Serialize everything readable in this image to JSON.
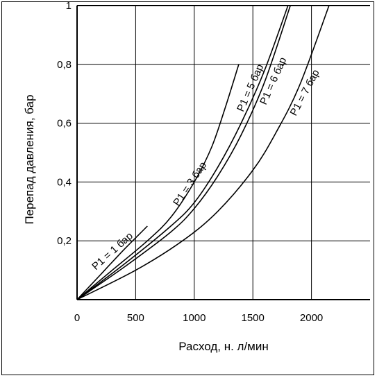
{
  "chart_data": {
    "type": "line",
    "xlabel": "Расход, н. л/мин",
    "ylabel": "Перепад давления, бар",
    "xlim": [
      0,
      2500
    ],
    "ylim": [
      0,
      1
    ],
    "grid": true,
    "x_ticks": [
      0,
      500,
      1000,
      1500,
      2000
    ],
    "x_tick_labels": [
      "0",
      "500",
      "1000",
      "1500",
      "2000"
    ],
    "y_ticks": [
      0.2,
      0.4,
      0.6,
      0.8,
      1
    ],
    "y_tick_labels": [
      "0,2",
      "0,4",
      "0,6",
      "0,8",
      "1"
    ],
    "series": [
      {
        "name": "P1 = 1 бар",
        "x": [
          0,
          200,
          400,
          600
        ],
        "y": [
          0,
          0.085,
          0.17,
          0.25
        ]
      },
      {
        "name": "P1 = 3 бар",
        "x": [
          0,
          300,
          600,
          800,
          1000,
          1150,
          1270,
          1380
        ],
        "y": [
          0,
          0.1,
          0.2,
          0.28,
          0.4,
          0.52,
          0.66,
          0.8
        ]
      },
      {
        "name": "P1 = 5 бар",
        "x": [
          0,
          400,
          800,
          1000,
          1200,
          1400,
          1600,
          1800
        ],
        "y": [
          0,
          0.12,
          0.25,
          0.33,
          0.45,
          0.6,
          0.78,
          1.0
        ]
      },
      {
        "name": "P1 = 6 бар",
        "x": [
          0,
          400,
          800,
          1000,
          1200,
          1400,
          1600,
          1820
        ],
        "y": [
          0,
          0.11,
          0.23,
          0.31,
          0.42,
          0.56,
          0.74,
          1.0
        ]
      },
      {
        "name": "P1 = 7 бар",
        "x": [
          0,
          500,
          900,
          1200,
          1500,
          1700,
          1900,
          2150
        ],
        "y": [
          0,
          0.1,
          0.2,
          0.3,
          0.44,
          0.57,
          0.73,
          1.0
        ]
      }
    ]
  }
}
